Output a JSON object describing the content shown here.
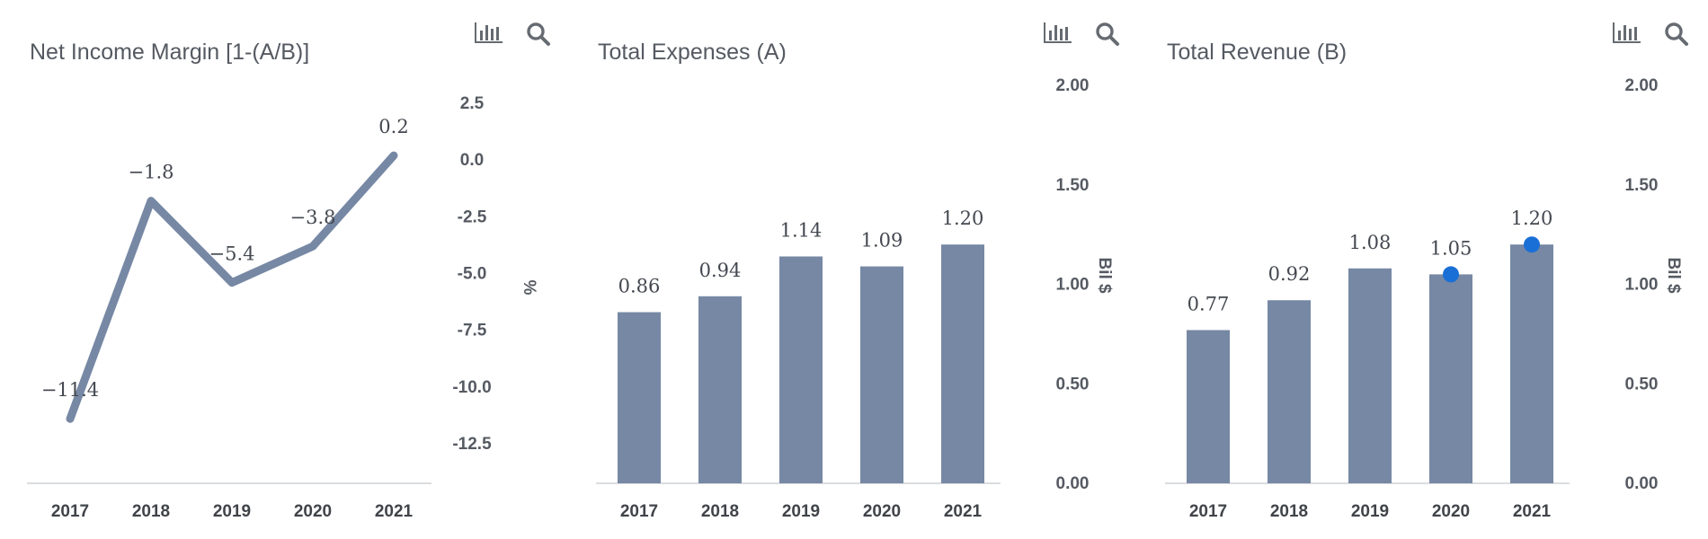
{
  "colors": {
    "bar": "#7688a4",
    "line": "#7688a4",
    "marker": "#1a6fd6",
    "axis": "#cfd2d6",
    "text": "#555a62"
  },
  "tools": {
    "chart_icon": "bar-chart-icon",
    "zoom_icon": "magnifier-icon"
  },
  "chart_data": [
    {
      "type": "line",
      "title": "Net Income Margin [1-(A/B)]",
      "ylabel": "%",
      "categories": [
        "2017",
        "2018",
        "2019",
        "2020",
        "2021"
      ],
      "values": [
        -11.4,
        -1.8,
        -5.4,
        -3.8,
        0.2
      ],
      "value_labels": [
        "−11.4",
        "−1.8",
        "−5.4",
        "−3.8",
        "0.2"
      ],
      "yticks": [
        "2.5",
        "0.0",
        "-2.5",
        "-5.0",
        "-7.5",
        "-10.0",
        "-12.5"
      ],
      "ylim": [
        -15,
        2.5
      ],
      "grid": false,
      "legend": "none"
    },
    {
      "type": "bar",
      "title": "Total Expenses (A)",
      "ylabel": "Bil $",
      "categories": [
        "2017",
        "2018",
        "2019",
        "2020",
        "2021"
      ],
      "values": [
        0.86,
        0.94,
        1.14,
        1.09,
        1.2
      ],
      "value_labels": [
        "0.86",
        "0.94",
        "1.14",
        "1.09",
        "1.20"
      ],
      "yticks": [
        "2.00",
        "1.50",
        "1.00",
        "0.50",
        "0.00"
      ],
      "ylim": [
        0,
        2
      ],
      "grid": false,
      "legend": "none"
    },
    {
      "type": "bar",
      "title": "Total Revenue (B)",
      "ylabel": "Bil $",
      "categories": [
        "2017",
        "2018",
        "2019",
        "2020",
        "2021"
      ],
      "values": [
        0.77,
        0.92,
        1.08,
        1.05,
        1.2
      ],
      "value_labels": [
        "0.77",
        "0.92",
        "1.08",
        "1.05",
        "1.20"
      ],
      "markers": [
        null,
        null,
        null,
        1.05,
        1.2
      ],
      "yticks": [
        "2.00",
        "1.50",
        "1.00",
        "0.50",
        "0.00"
      ],
      "ylim": [
        0,
        2
      ],
      "grid": false,
      "legend": "none"
    }
  ]
}
